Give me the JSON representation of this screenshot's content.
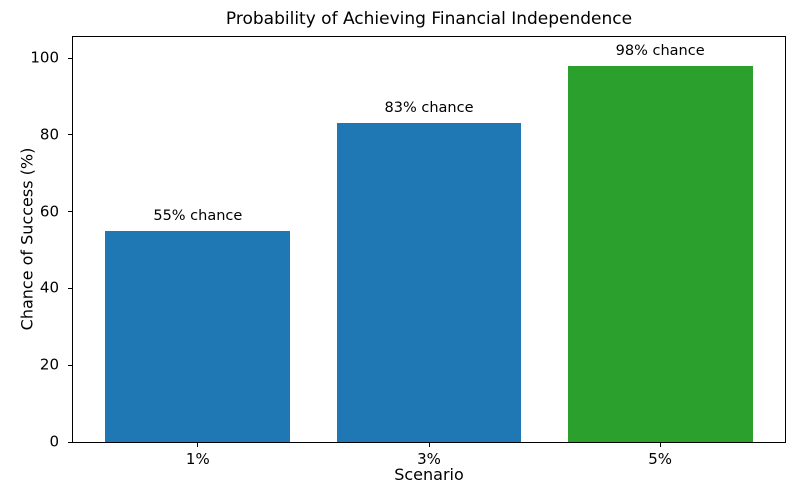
{
  "chart_data": {
    "type": "bar",
    "title": "Probability of Achieving Financial Independence",
    "xlabel": "Scenario",
    "ylabel": "Chance of Success (%)",
    "categories": [
      "1%",
      "3%",
      "5%"
    ],
    "values": [
      55,
      83,
      98
    ],
    "bar_labels": [
      "55% chance",
      "83% chance",
      "98% chance"
    ],
    "bar_colors": [
      "#1f77b4",
      "#1f77b4",
      "#2ca02c"
    ],
    "yticks": [
      0,
      20,
      40,
      60,
      80,
      100
    ],
    "ylim": [
      0,
      105.5
    ],
    "xlim_units": [
      -0.54,
      2.54
    ],
    "bar_width_units": 0.8,
    "grid": false,
    "legend": "none",
    "background_color": "#ffffff",
    "axis_color": "#000000"
  }
}
